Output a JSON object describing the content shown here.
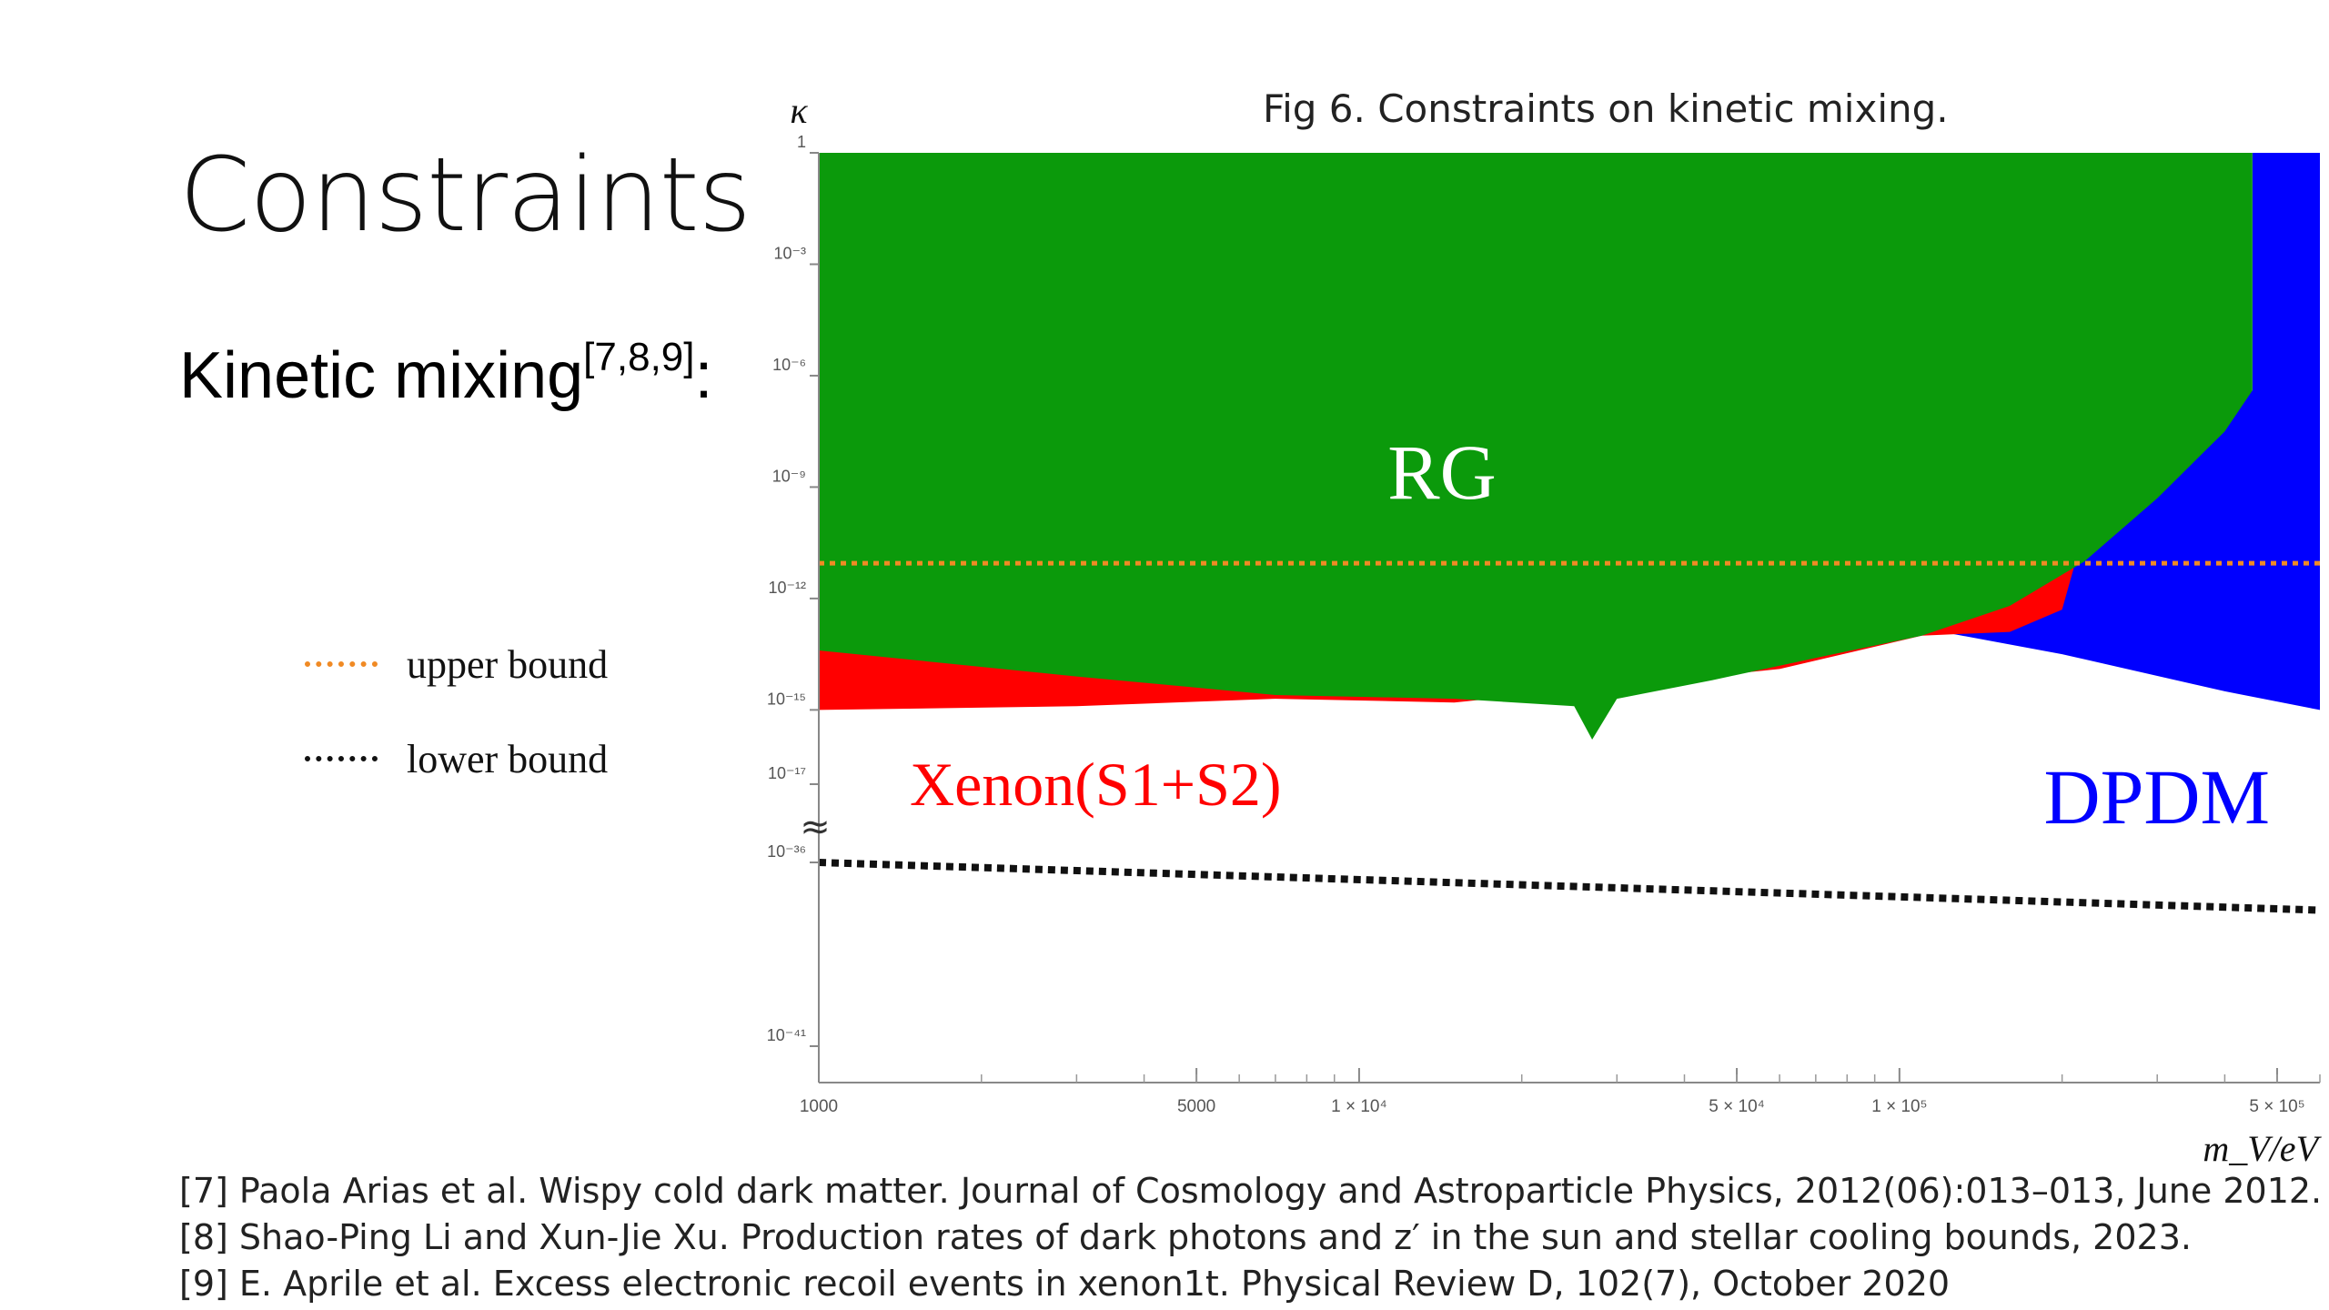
{
  "slide": {
    "title": "Constraints",
    "subtitle": "Kinetic mixing",
    "subtitle_refs": "[7,8,9]",
    "subtitle_suffix": ":",
    "figure_caption": "Fig 6. Constraints on kinetic mixing."
  },
  "legend": {
    "items": [
      {
        "label": "upper bound",
        "color": "#f08a24"
      },
      {
        "label": "lower bound",
        "color": "#111111"
      }
    ]
  },
  "references": [
    "[7]   Paola Arias et al. Wispy cold dark matter. Journal of Cosmology and Astroparticle Physics, 2012(06):013–013, June 2012.",
    "[8]  Shao-Ping Li and Xun-Jie Xu. Production rates of dark photons and z′ in the sun and stellar cooling bounds, 2023.",
    "[9] E. Aprile et al. Excess electronic recoil events in xenon1t. Physical Review D, 102(7), October 2020"
  ],
  "chart_data": {
    "type": "area",
    "ylabel": "κ",
    "xlabel": "m_V/eV",
    "x_scale": "log",
    "y_scale": "log (broken axis)",
    "xlim": [
      1000,
      600000
    ],
    "y_upper_segment": [
      -17,
      0
    ],
    "y_lower_segment": [
      -41,
      -36
    ],
    "x_ticks": [
      "1000",
      "5000",
      "1 × 10⁴",
      "5 × 10⁴",
      "1 × 10⁵",
      "5 × 10⁵"
    ],
    "x_tick_values": [
      1000,
      5000,
      10000,
      50000,
      100000,
      500000
    ],
    "y_ticks": [
      "1",
      "10⁻³",
      "10⁻⁶",
      "10⁻⁹",
      "10⁻¹²",
      "10⁻¹⁵",
      "10⁻¹⁷",
      "10⁻³⁶",
      "10⁻⁴¹"
    ],
    "y_tick_values": [
      0,
      -3,
      -6,
      -9,
      -12,
      -15,
      -17,
      -36,
      -41
    ],
    "axis_break_symbol": "≈",
    "region_labels": {
      "rg": "RG",
      "xenon": "Xenon(S1+S2)",
      "dpdm": "DPDM"
    },
    "colors": {
      "rg": "#0b9a0b",
      "xenon": "#ff0000",
      "dpdm": "#0000ff",
      "upper": "#f08a24",
      "lower": "#111111"
    },
    "series": [
      {
        "name": "RG",
        "boundary_log10_kappa": [
          [
            1000,
            -13.4
          ],
          [
            3000,
            -14.1
          ],
          [
            7000,
            -14.6
          ],
          [
            15000,
            -14.7
          ],
          [
            25000,
            -14.9
          ],
          [
            27000,
            -15.8
          ],
          [
            30000,
            -14.7
          ],
          [
            45000,
            -14.2
          ],
          [
            70000,
            -13.6
          ],
          [
            110000,
            -13.0
          ],
          [
            160000,
            -12.2
          ],
          [
            220000,
            -11.0
          ],
          [
            300000,
            -9.3
          ],
          [
            400000,
            -7.5
          ],
          [
            450000,
            -6.4
          ],
          [
            450000,
            0
          ]
        ]
      },
      {
        "name": "Xenon(S1+S2)",
        "boundary_log10_kappa": [
          [
            1000,
            -15.0
          ],
          [
            3000,
            -14.9
          ],
          [
            7000,
            -14.7
          ],
          [
            15000,
            -14.8
          ],
          [
            60000,
            -13.9
          ],
          [
            110000,
            -13.0
          ],
          [
            160000,
            -12.9
          ],
          [
            200000,
            -12.3
          ],
          [
            210000,
            -11.2
          ]
        ]
      },
      {
        "name": "DPDM",
        "boundary_log10_kappa": [
          [
            110000,
            -12.8
          ],
          [
            200000,
            -13.5
          ],
          [
            400000,
            -14.5
          ],
          [
            600000,
            -15.0
          ]
        ]
      },
      {
        "name": "upper bound",
        "log10_kappa": [
          [
            1000,
            -11.05
          ],
          [
            600000,
            -11.05
          ]
        ]
      },
      {
        "name": "lower bound",
        "log10_kappa": [
          [
            1000,
            -36.0
          ],
          [
            600000,
            -37.3
          ]
        ]
      }
    ]
  }
}
